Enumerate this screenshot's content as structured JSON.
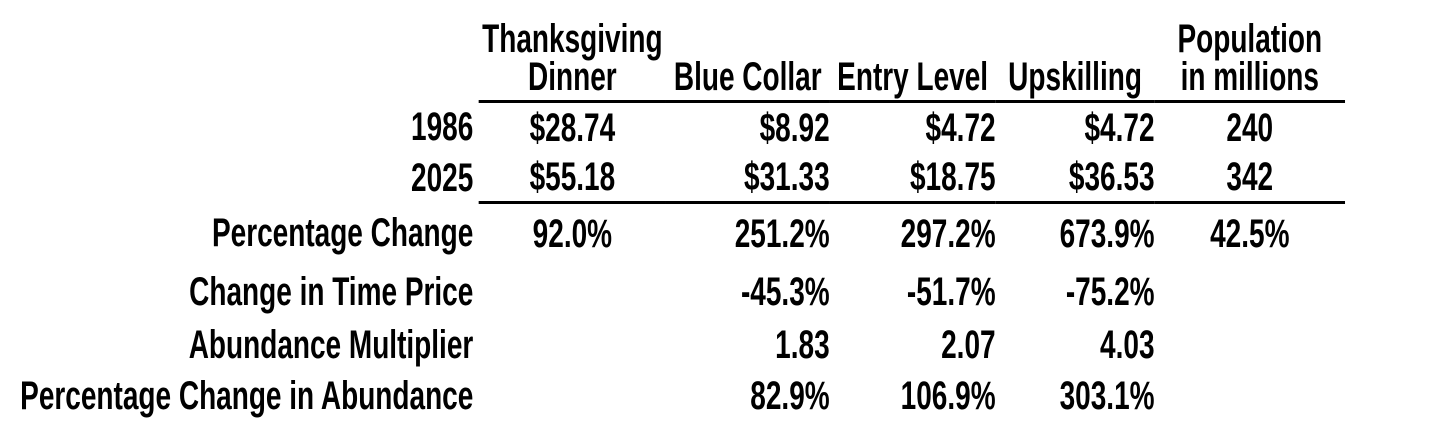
{
  "colors": {
    "background": "#ffffff",
    "text": "#000000",
    "rule": "#000000"
  },
  "chart_data": {
    "type": "table",
    "title": "",
    "columns": [
      "",
      "Thanksgiving\nDinner",
      "Blue Collar",
      "Entry Level",
      "Upskilling",
      "Population\nin millions"
    ],
    "rows": [
      {
        "label": "1986",
        "values": [
          "$28.74",
          "$8.92",
          "$4.72",
          "$4.72",
          "240"
        ]
      },
      {
        "label": "2025",
        "values": [
          "$55.18",
          "$31.33",
          "$18.75",
          "$36.53",
          "342"
        ]
      },
      {
        "label": "Percentage Change",
        "values": [
          "92.0%",
          "251.2%",
          "297.2%",
          "673.9%",
          "42.5%"
        ]
      },
      {
        "label": "Change in Time Price",
        "values": [
          "",
          "-45.3%",
          "-51.7%",
          "-75.2%",
          ""
        ]
      },
      {
        "label": "Abundance Multiplier",
        "values": [
          "",
          "1.83",
          "2.07",
          "4.03",
          ""
        ]
      },
      {
        "label": "Percentage Change in Abundance",
        "values": [
          "",
          "82.9%",
          "106.9%",
          "303.1%",
          ""
        ]
      }
    ],
    "layout": {
      "grid": "off",
      "rules": [
        "below-header",
        "below-2025-row"
      ],
      "label_column_alignment": "right",
      "value_alignments": [
        "center",
        "right",
        "right",
        "right",
        "center"
      ]
    }
  }
}
